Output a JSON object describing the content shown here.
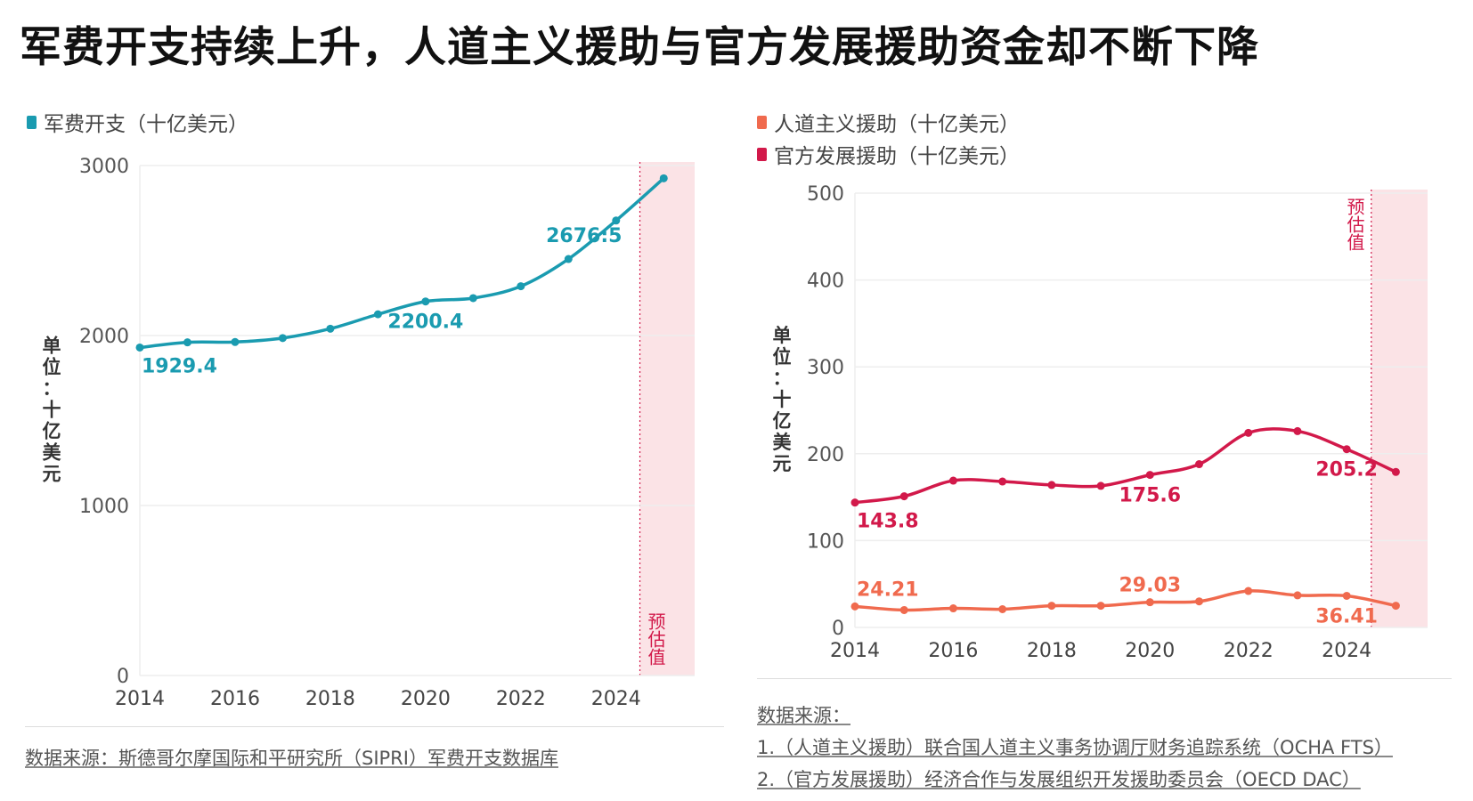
{
  "title": "军费开支持续上升，人道主义援助与官方发展援助资金却不断下降",
  "colors": {
    "military": "#1a9bb0",
    "humanitarian": "#f06a4e",
    "oda": "#d2194a",
    "estimate_band": "#fbe3e6"
  },
  "chart_data": [
    {
      "type": "line",
      "legend": [
        "军费开支（十亿美元）"
      ],
      "ylabel": "单位：十亿美元",
      "ylim": [
        0,
        3000
      ],
      "yticks": [
        0,
        1000,
        2000,
        3000
      ],
      "xticks": [
        2014,
        2016,
        2018,
        2020,
        2022,
        2024
      ],
      "x": [
        2014,
        2015,
        2016,
        2017,
        2018,
        2019,
        2020,
        2021,
        2022,
        2023,
        2024,
        2025
      ],
      "series": [
        {
          "name": "军费开支（十亿美元）",
          "values": [
            1929.4,
            1960,
            1962,
            1985,
            2040,
            2125,
            2200.4,
            2220,
            2290,
            2450,
            2676.5,
            2925
          ],
          "labels": [
            {
              "year": 2014,
              "text": "1929.4"
            },
            {
              "year": 2020,
              "text": "2200.4"
            },
            {
              "year": 2024,
              "text": "2676:5"
            }
          ]
        }
      ],
      "estimate_label": "预估值",
      "estimate_from": 2024.5,
      "source": "数据来源：斯德哥尔摩国际和平研究所（SIPRI）军费开支数据库"
    },
    {
      "type": "line",
      "legend": [
        "人道主义援助（十亿美元）",
        "官方发展援助（十亿美元）"
      ],
      "ylabel": "单位：十亿美元",
      "ylim": [
        0,
        500
      ],
      "yticks": [
        0,
        100,
        200,
        300,
        400,
        500
      ],
      "xticks": [
        2014,
        2016,
        2018,
        2020,
        2022,
        2024
      ],
      "x": [
        2014,
        2015,
        2016,
        2017,
        2018,
        2019,
        2020,
        2021,
        2022,
        2023,
        2024,
        2025
      ],
      "series": [
        {
          "name": "人道主义援助（十亿美元）",
          "values": [
            24.21,
            20,
            22,
            21,
            25,
            25,
            29.03,
            30,
            42,
            37,
            36.41,
            25
          ],
          "labels": [
            {
              "year": 2014,
              "text": "24.21"
            },
            {
              "year": 2020,
              "text": "29.03"
            },
            {
              "year": 2024,
              "text": "36.41"
            }
          ]
        },
        {
          "name": "官方发展援助（十亿美元）",
          "values": [
            143.8,
            151,
            169,
            168,
            164,
            163,
            175.6,
            188,
            224,
            226,
            205.2,
            179
          ],
          "labels": [
            {
              "year": 2014,
              "text": "143.8"
            },
            {
              "year": 2020,
              "text": "175.6"
            },
            {
              "year": 2024,
              "text": "205.2"
            }
          ]
        }
      ],
      "estimate_label": "预估值",
      "estimate_from": 2024.5,
      "source_title": "数据来源：",
      "sources": [
        "1.（人道主义援助）联合国人道主义事务协调厅财务追踪系统（OCHA FTS）",
        "2.（官方发展援助）经济合作与发展组织开发援助委员会（OECD DAC）"
      ]
    }
  ]
}
